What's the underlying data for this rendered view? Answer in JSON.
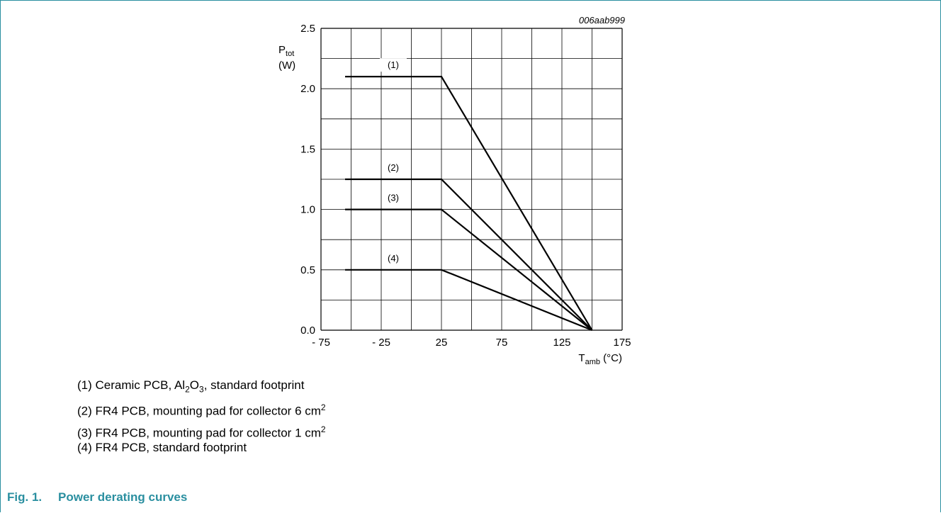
{
  "figure": {
    "number": "Fig. 1.",
    "title": "Power derating curves",
    "code": "006aab999"
  },
  "legend": {
    "item1": {
      "prefix": "(1) Ceramic PCB, Al",
      "sub1": "2",
      "mid": "O",
      "sub2": "3",
      "suffix": ", standard footprint"
    },
    "item2": {
      "text": "(2) FR4 PCB, mounting pad for collector 6 cm",
      "sup": "2"
    },
    "item3": {
      "text": "(3) FR4 PCB, mounting pad for collector 1 cm",
      "sup": "2"
    },
    "item4": {
      "text": "(4) FR4 PCB, standard footprint"
    }
  },
  "chart_data": {
    "type": "line",
    "ylabel": {
      "main": "P",
      "sub": "tot",
      "unit": "(W)"
    },
    "xlabel": {
      "main": "T",
      "sub": "amb",
      "unit": " (°C)"
    },
    "xlim": [
      -75,
      175
    ],
    "ylim": [
      0,
      2.5
    ],
    "x_ticks": [
      -75,
      -25,
      25,
      75,
      125,
      175
    ],
    "x_tick_labels": [
      "- 75",
      "- 25",
      "25",
      "75",
      "125",
      "175"
    ],
    "y_ticks": [
      0,
      0.5,
      1.0,
      1.5,
      2.0,
      2.5
    ],
    "y_tick_labels": [
      "0.0",
      "0.5",
      "1.0",
      "1.5",
      "2.0",
      "2.5"
    ],
    "grid": true,
    "series": [
      {
        "label": "(1)",
        "x": [
          -55,
          25,
          150
        ],
        "y": [
          2.1,
          2.1,
          0
        ]
      },
      {
        "label": "(2)",
        "x": [
          -55,
          25,
          150
        ],
        "y": [
          1.25,
          1.25,
          0
        ]
      },
      {
        "label": "(3)",
        "x": [
          -55,
          25,
          150
        ],
        "y": [
          1.0,
          1.0,
          0
        ]
      },
      {
        "label": "(4)",
        "x": [
          -55,
          25,
          150
        ],
        "y": [
          0.5,
          0.5,
          0
        ]
      }
    ]
  }
}
